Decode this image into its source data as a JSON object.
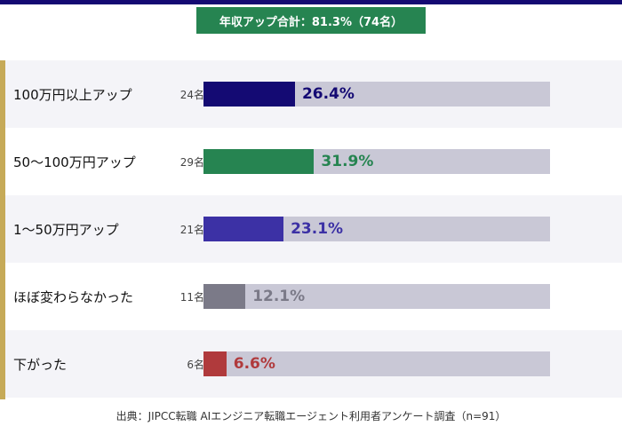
{
  "summary": {
    "text": "年収アップ合計：81.3%（74名）"
  },
  "chart_data": {
    "type": "bar",
    "orientation": "horizontal",
    "xlim": [
      0,
      100
    ],
    "categories": [
      "100万円以上アップ",
      "50〜100万円アップ",
      "1〜50万円アップ",
      "ほぼ変わらなかった",
      "下がった"
    ],
    "counts": [
      "24名",
      "29名",
      "21名",
      "11名",
      "6名"
    ],
    "values": [
      26.4,
      31.9,
      23.1,
      12.1,
      6.6
    ],
    "value_labels": [
      "26.4%",
      "31.9%",
      "23.1%",
      "12.1%",
      "6.6%"
    ],
    "colors": [
      "#140a73",
      "#268451",
      "#3c31a5",
      "#7b7a88",
      "#b03a3c"
    ],
    "row_backgrounds": [
      "#f4f4f8",
      "#ffffff",
      "#f4f4f8",
      "#ffffff",
      "#f4f4f8"
    ],
    "track_color": "#c9c8d6",
    "grid": false
  },
  "source": "出典：JIPCC転職 AIエンジニア転職エージェント利用者アンケート調査（n=91）",
  "colors": {
    "top_rule": "#140a73",
    "banner": "#268451",
    "accent": "#c6aa58"
  }
}
